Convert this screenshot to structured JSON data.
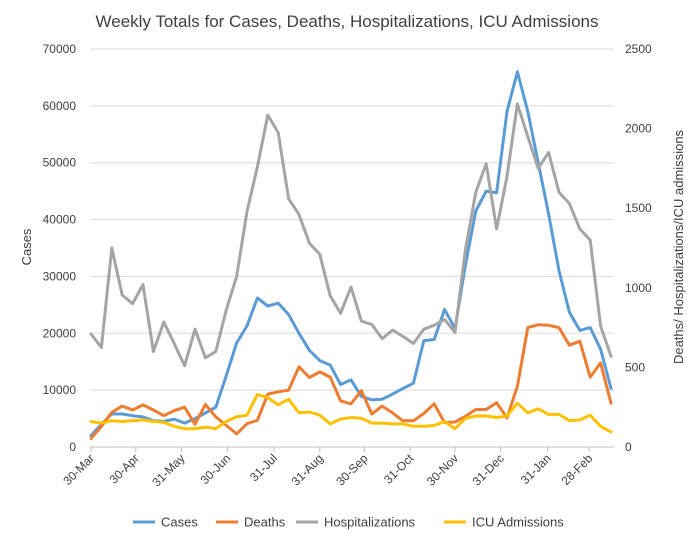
{
  "chart_data": {
    "type": "line",
    "title": "Weekly Totals for Cases, Deaths, Hospitalizations, ICU Admissions",
    "ylabel_left": "Cases",
    "ylabel_right": "Deaths/ Hospitalizations/ICU admissions",
    "ylim_left": [
      0,
      70000
    ],
    "ylim_right": [
      0,
      2500
    ],
    "y_left_ticks": [
      "0",
      "10000",
      "20000",
      "30000",
      "40000",
      "50000",
      "60000",
      "70000"
    ],
    "y_right_ticks": [
      "0",
      "500",
      "1000",
      "1500",
      "2000",
      "2500"
    ],
    "x_tick_labels": [
      {
        "index": 0,
        "label": "30-Mar"
      },
      {
        "index": 4.3,
        "label": "30-Apr"
      },
      {
        "index": 8.7,
        "label": "31-May"
      },
      {
        "index": 13.1,
        "label": "30-Jun"
      },
      {
        "index": 17.6,
        "label": "31-Jul"
      },
      {
        "index": 22,
        "label": "31-Aug"
      },
      {
        "index": 26.3,
        "label": "30-Sep"
      },
      {
        "index": 30.7,
        "label": "31-Oct"
      },
      {
        "index": 35,
        "label": "30-Nov"
      },
      {
        "index": 39.4,
        "label": "31-Dec"
      },
      {
        "index": 43.9,
        "label": "31-Jan"
      },
      {
        "index": 47.9,
        "label": "28-Feb"
      }
    ],
    "grid": true,
    "legend_position": "bottom",
    "series": [
      {
        "name": "Cases",
        "axis": "left",
        "color": "#5b9bd5",
        "values": [
          2000,
          4000,
          5800,
          5800,
          5500,
          5300,
          4600,
          4500,
          4900,
          4200,
          5000,
          6000,
          7000,
          12500,
          18300,
          21300,
          26200,
          24800,
          25300,
          23300,
          20000,
          17000,
          15200,
          14400,
          11000,
          11800,
          8900,
          8300,
          8400,
          9300,
          10300,
          11200,
          18700,
          18900,
          24200,
          20800,
          32000,
          41500,
          45000,
          44700,
          59000,
          66000,
          59000,
          50000,
          41000,
          31000,
          23700,
          20500,
          21000,
          17200,
          10300
        ]
      },
      {
        "name": "Deaths",
        "axis": "left",
        "color": "#ed7d31",
        "values": [
          1500,
          3600,
          6100,
          7200,
          6500,
          7400,
          6500,
          5500,
          6400,
          7000,
          4000,
          7500,
          5300,
          3800,
          2300,
          4100,
          4700,
          9300,
          9700,
          10000,
          14100,
          12200,
          13200,
          12300,
          8100,
          7600,
          9900,
          5800,
          7200,
          6000,
          4600,
          4600,
          5900,
          7600,
          4300,
          4400,
          5400,
          6600,
          6600,
          7800,
          5100,
          10700,
          21000,
          21500,
          21400,
          21000,
          17900,
          18600,
          12300,
          14800,
          7700
        ]
      },
      {
        "name": "Hospitalizations",
        "axis": "right",
        "color": "#a5a5a5",
        "values": [
          710,
          625,
          1250,
          955,
          900,
          1020,
          600,
          785,
          650,
          510,
          740,
          560,
          600,
          860,
          1070,
          1480,
          1760,
          2085,
          1975,
          1560,
          1460,
          1280,
          1210,
          950,
          840,
          1005,
          790,
          770,
          680,
          735,
          695,
          650,
          740,
          765,
          800,
          720,
          1240,
          1600,
          1780,
          1370,
          1700,
          2155,
          1950,
          1750,
          1850,
          1600,
          1530,
          1370,
          1300,
          760,
          570
        ]
      },
      {
        "name": "ICU Admissions",
        "axis": "right",
        "color": "#ffc000",
        "values": [
          160,
          150,
          165,
          160,
          165,
          170,
          160,
          155,
          130,
          115,
          115,
          125,
          115,
          160,
          190,
          200,
          330,
          310,
          265,
          300,
          215,
          220,
          200,
          145,
          175,
          185,
          180,
          150,
          150,
          145,
          145,
          130,
          130,
          135,
          160,
          115,
          180,
          195,
          195,
          185,
          195,
          275,
          215,
          240,
          205,
          205,
          165,
          170,
          200,
          130,
          95
        ]
      }
    ]
  }
}
